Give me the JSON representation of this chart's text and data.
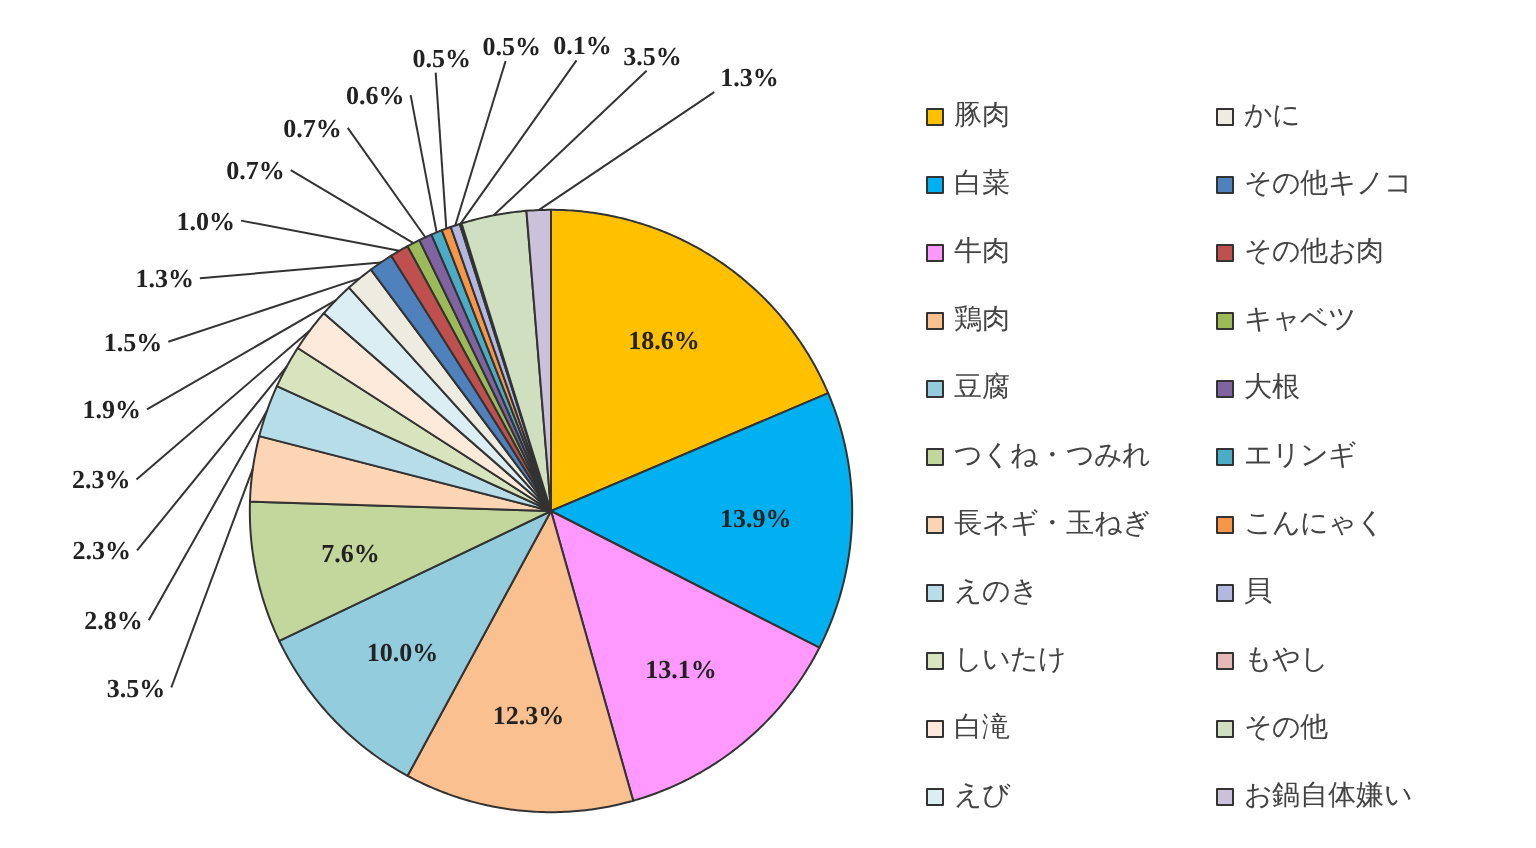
{
  "chart_data": {
    "type": "pie",
    "categories": [
      "豚肉",
      "白菜",
      "牛肉",
      "鶏肉",
      "豆腐",
      "つくね・つみれ",
      "長ネギ・玉ねぎ",
      "えのき",
      "しいたけ",
      "白滝",
      "えび",
      "かに",
      "その他キノコ",
      "その他お肉",
      "キャベツ",
      "大根",
      "エリンギ",
      "こんにゃく",
      "貝",
      "もやし",
      "その他",
      "お鍋自体嫌い"
    ],
    "values": [
      18.6,
      13.9,
      13.1,
      12.3,
      10.0,
      7.6,
      3.5,
      2.8,
      2.3,
      2.3,
      1.9,
      1.5,
      1.3,
      1.0,
      0.7,
      0.7,
      0.6,
      0.5,
      0.5,
      0.1,
      3.5,
      1.3
    ],
    "value_labels": [
      "18.6%",
      "13.9%",
      "13.1%",
      "12.3%",
      "10.0%",
      "7.6%",
      "3.5%",
      "2.8%",
      "2.3%",
      "2.3%",
      "1.9%",
      "1.5%",
      "1.3%",
      "1.0%",
      "0.7%",
      "0.7%",
      "0.6%",
      "0.5%",
      "0.5%",
      "0.1%",
      "3.5%",
      "1.3%"
    ],
    "colors": [
      "#ffc000",
      "#00b0f0",
      "#ff99ff",
      "#fac090",
      "#93cddd",
      "#c3d69b",
      "#fcd5b5",
      "#b7dee8",
      "#d7e4bd",
      "#fdeada",
      "#dbeef4",
      "#eeece1",
      "#4f81bd",
      "#c0504d",
      "#9bbb59",
      "#8064a2",
      "#4bacc6",
      "#f79646",
      "#b3b8e0",
      "#e6b9b8",
      "#d0dfc0",
      "#ccc1da"
    ],
    "legend": "right"
  }
}
